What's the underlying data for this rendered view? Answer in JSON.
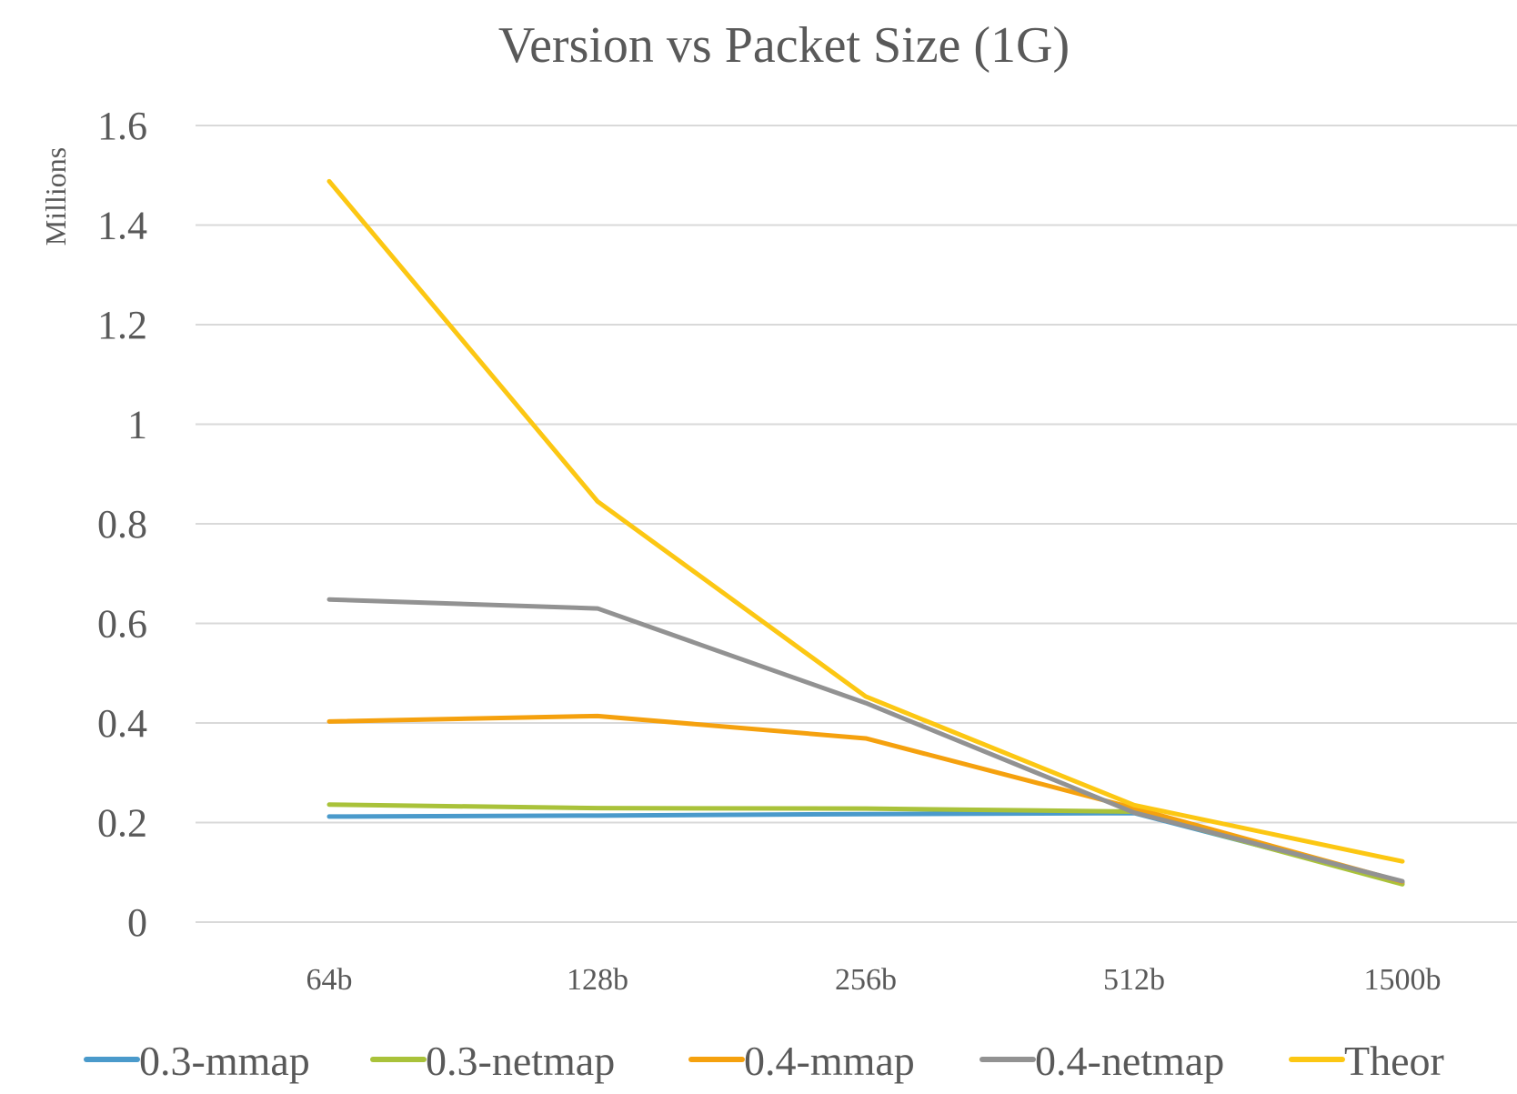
{
  "chart_data": {
    "type": "line",
    "title": "Version vs Packet Size (1G)",
    "xlabel": "",
    "ylabel": "Millions",
    "categories": [
      "64b",
      "128b",
      "256b",
      "512b",
      "1500b"
    ],
    "ylim": [
      0,
      1.6
    ],
    "yticks": [
      "0",
      "0.2",
      "0.4",
      "0.6",
      "0.8",
      "1",
      "1.2",
      "1.4",
      "1.6"
    ],
    "ytick_values": [
      0,
      0.2,
      0.4,
      0.6,
      0.8,
      1.0,
      1.2,
      1.4,
      1.6
    ],
    "grid": "horizontal",
    "legend_position": "bottom",
    "series": [
      {
        "name": "0.3-mmap",
        "color": "#4a9acb",
        "values": [
          0.212,
          0.214,
          0.217,
          0.219,
          0.079
        ]
      },
      {
        "name": "0.3-netmap",
        "color": "#a9c23a",
        "values": [
          0.236,
          0.229,
          0.228,
          0.222,
          0.076
        ]
      },
      {
        "name": "0.4-mmap",
        "color": "#f5a10e",
        "values": [
          0.403,
          0.414,
          0.369,
          0.229,
          0.081
        ]
      },
      {
        "name": "0.4-netmap",
        "color": "#929292",
        "values": [
          0.648,
          0.63,
          0.44,
          0.22,
          0.082
        ]
      },
      {
        "name": "Theor",
        "color": "#fcc713",
        "values": [
          1.488,
          0.845,
          0.453,
          0.235,
          0.122
        ]
      }
    ]
  }
}
